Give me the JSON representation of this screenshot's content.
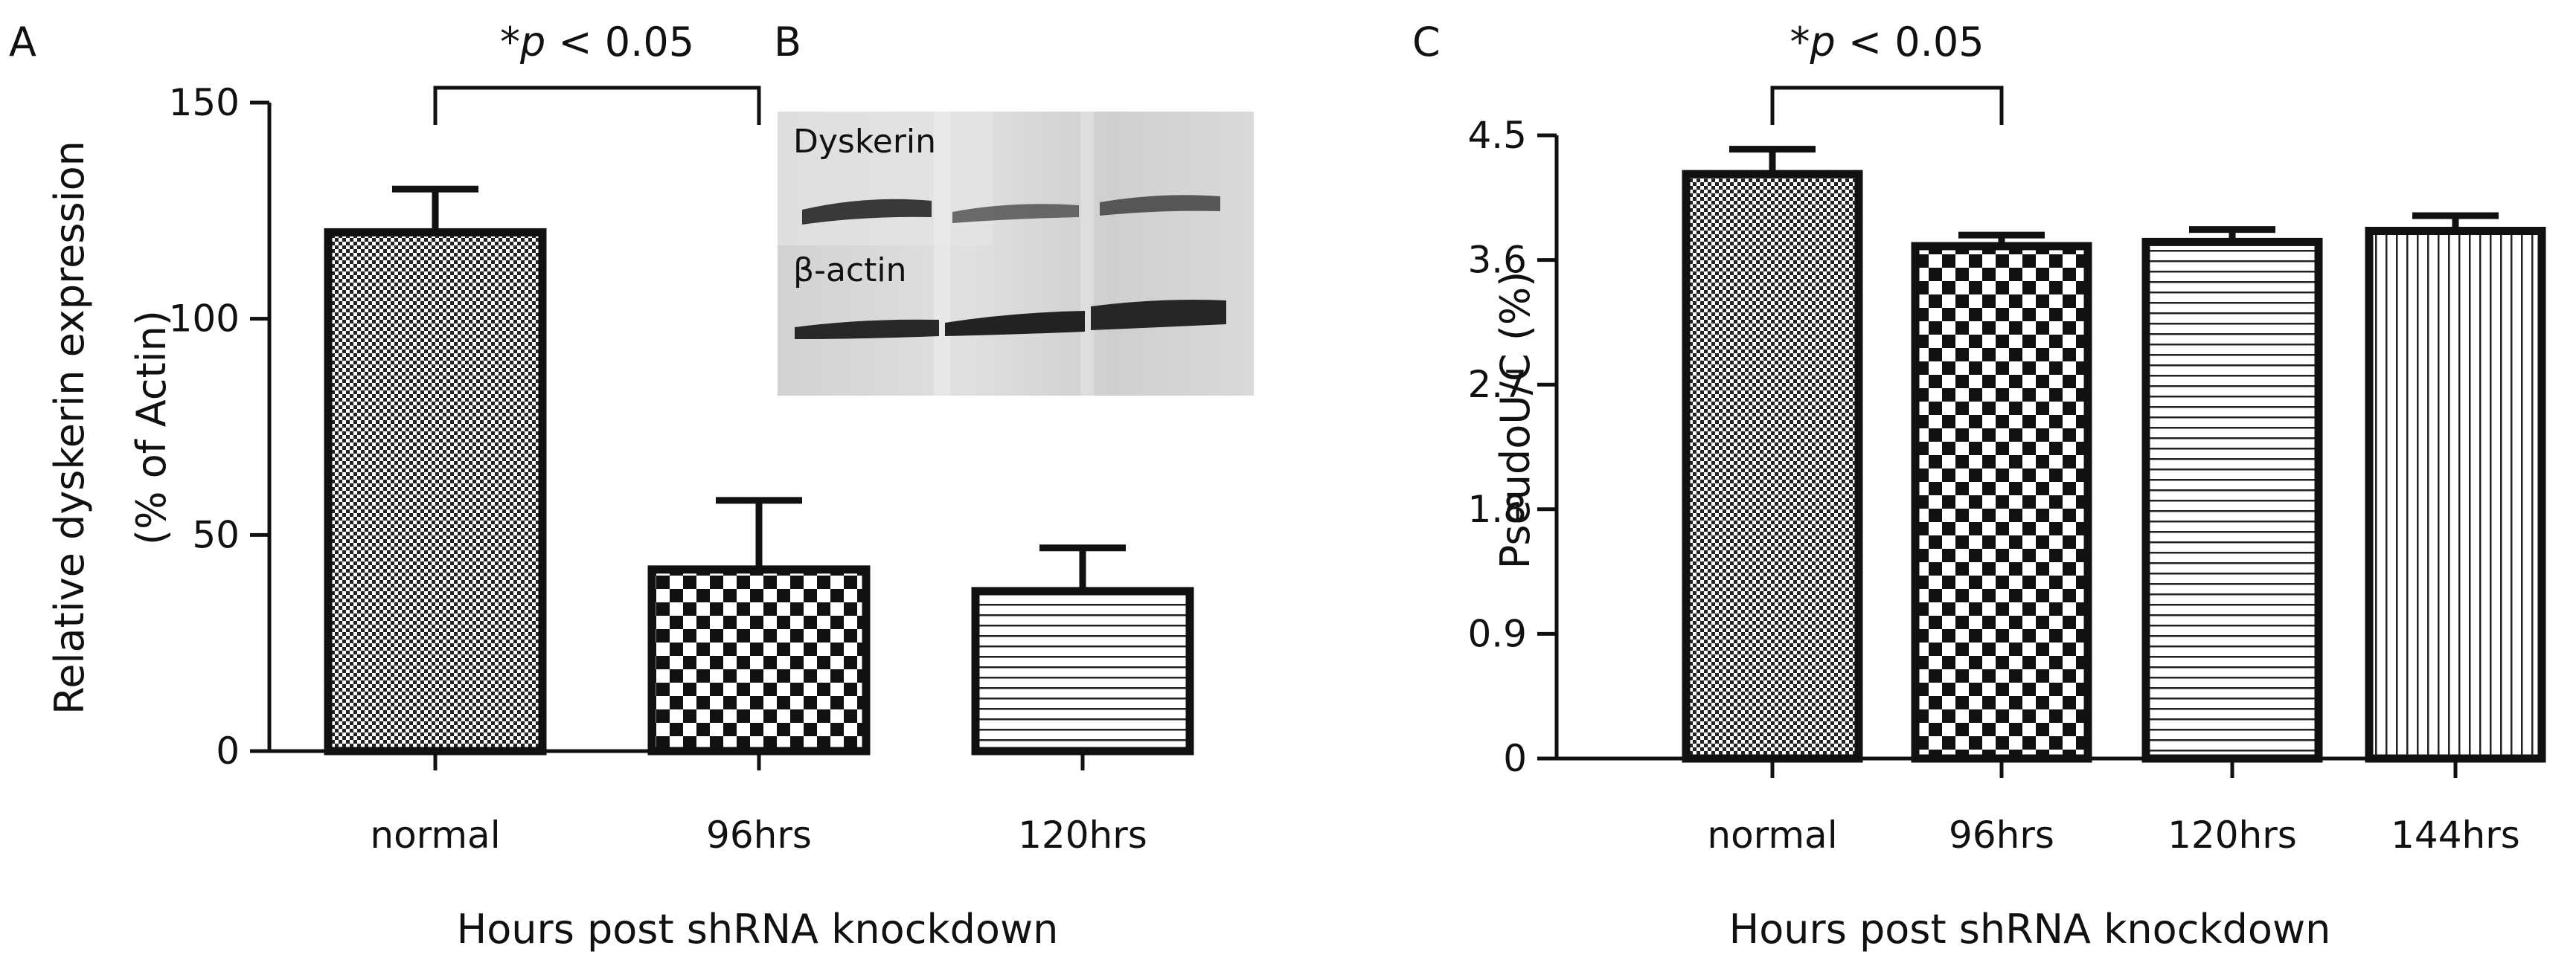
{
  "figure": {
    "panels": {
      "a": {
        "label": "A"
      },
      "b": {
        "label": "B",
        "band_labels": [
          "Dyskerin",
          "β-actin"
        ]
      },
      "c": {
        "label": "C"
      }
    },
    "significance_a": {
      "star": "*",
      "p": "p",
      "rest": " < 0.05"
    },
    "significance_c": {
      "star": "*",
      "p": "p",
      "rest": " < 0.05"
    }
  },
  "colors": {
    "ink": "#111111",
    "blot_bg": "#dcdcdc",
    "band": "#2a2a2a"
  },
  "chart_data": [
    {
      "panel": "A",
      "type": "bar",
      "title": "",
      "xlabel": "Hours post shRNA knockdown",
      "ylabel": "Relative dyskerin expression",
      "ylabel2": "(% of Actin)",
      "categories": [
        "normal",
        "96hrs",
        "120hrs"
      ],
      "values": [
        120,
        42,
        37
      ],
      "errors": [
        10,
        16,
        10
      ],
      "patterns": [
        "fine-check",
        "coarse-check",
        "horizontal-lines"
      ],
      "ylim": [
        0,
        150
      ],
      "yticks": [
        0,
        50,
        100,
        150
      ],
      "ytick_labels": [
        "0",
        "50",
        "100",
        "150"
      ],
      "annotation": {
        "from": "normal",
        "to": "96hrs",
        "text": "*p < 0.05"
      },
      "grid": false,
      "legend": "none"
    },
    {
      "panel": "C",
      "type": "bar",
      "title": "",
      "xlabel": "Hours post shRNA knockdown",
      "ylabel": "PseudoU/C (%)",
      "categories": [
        "normal",
        "96hrs",
        "120hrs",
        "144hrs"
      ],
      "values": [
        4.22,
        3.7,
        3.73,
        3.81
      ],
      "errors": [
        0.18,
        0.08,
        0.09,
        0.11
      ],
      "patterns": [
        "fine-check",
        "coarse-check",
        "horizontal-lines",
        "vertical-lines"
      ],
      "ylim": [
        0,
        4.5
      ],
      "yticks": [
        0,
        0.9,
        1.8,
        2.7,
        3.6,
        4.5
      ],
      "ytick_labels": [
        "0",
        "0.9",
        "1.8",
        "2.7",
        "3.6",
        "4.5"
      ],
      "annotation": {
        "from": "normal",
        "to": "96hrs",
        "text": "*p < 0.05"
      },
      "grid": false,
      "legend": "none"
    }
  ]
}
